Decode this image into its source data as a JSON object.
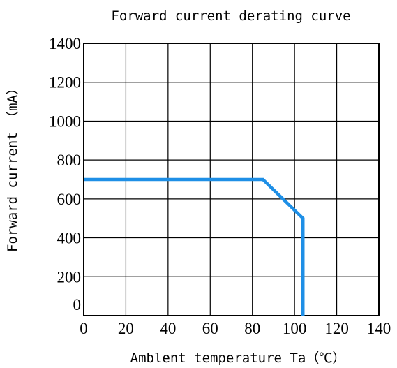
{
  "chart_data": {
    "type": "line",
    "title": "Forward current derating curve",
    "xlabel": "Amblent temperature Ta（℃）",
    "ylabel": "Forward current （mA）",
    "xlim": [
      0,
      140
    ],
    "ylim": [
      0,
      1400
    ],
    "xticks": [
      0,
      20,
      40,
      60,
      80,
      100,
      120,
      140
    ],
    "yticks": [
      0,
      200,
      400,
      600,
      800,
      1000,
      1200,
      1400
    ],
    "xtick_labels": [
      "0",
      "20",
      "40",
      "60",
      "80",
      "100",
      "120",
      "140"
    ],
    "ytick_labels": [
      "0",
      "200",
      "400",
      "600",
      "800",
      "1000",
      "1200",
      "1400"
    ],
    "grid": true,
    "series": [
      {
        "color": "#1e8fe6",
        "points": [
          {
            "x": 0,
            "y": 700
          },
          {
            "x": 85,
            "y": 700
          },
          {
            "x": 104,
            "y": 500
          },
          {
            "x": 104,
            "y": 0
          }
        ]
      }
    ]
  }
}
